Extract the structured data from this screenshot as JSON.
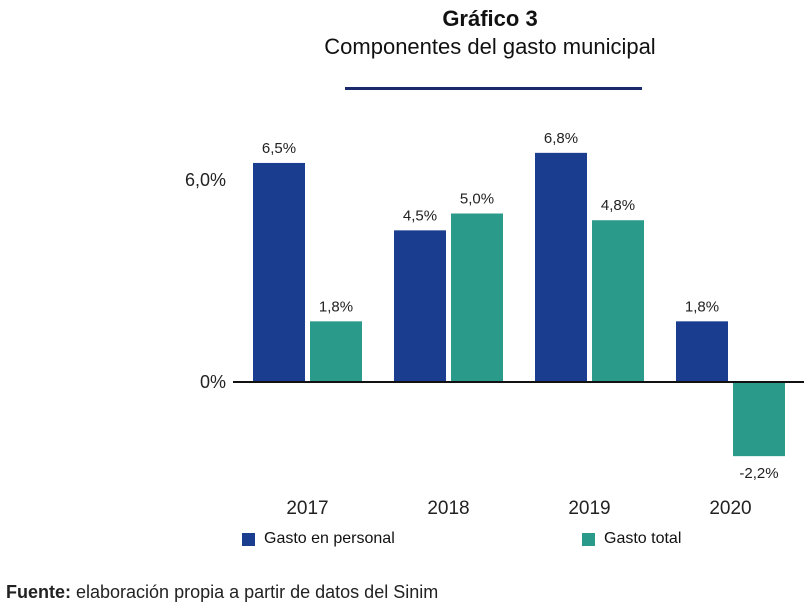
{
  "title": "Gráfico 3",
  "subtitle": "Componentes del gasto municipal",
  "source": {
    "label": "Fuente:",
    "text": " elaboración propia a partir de datos del Sinim"
  },
  "chart_data": {
    "type": "bar",
    "categories": [
      "2017",
      "2018",
      "2019",
      "2020"
    ],
    "series": [
      {
        "name": "Gasto en personal",
        "color": "#1a3d8f",
        "values": [
          6.5,
          4.5,
          6.8,
          1.8
        ],
        "labels": [
          "6,5%",
          "4,5%",
          "6,8%",
          "1,8%"
        ]
      },
      {
        "name": "Gasto total",
        "color": "#2a9a8a",
        "values": [
          1.8,
          5.0,
          4.8,
          -2.2
        ],
        "labels": [
          "1,8%",
          "5,0%",
          "4,8%",
          "-2,2%"
        ]
      }
    ],
    "yticks": [
      {
        "value": 0,
        "label": "0%"
      },
      {
        "value": 6,
        "label": "6,0%"
      }
    ],
    "ylim": [
      -3.2,
      8
    ]
  }
}
